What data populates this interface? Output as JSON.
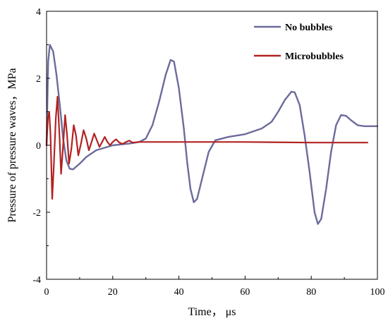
{
  "chart_data": {
    "type": "line",
    "xlabel": "Time，  μs",
    "ylabel": "Pressure of pressure waves，MPa",
    "xlim": [
      0,
      100
    ],
    "ylim": [
      -4,
      4
    ],
    "x_ticks": [
      0,
      20,
      40,
      60,
      80,
      100
    ],
    "y_ticks": [
      -4,
      -2,
      0,
      2,
      4
    ],
    "grid": false,
    "legend": "top-right",
    "series": [
      {
        "name": "No bubbles",
        "color": "#6b6b9c",
        "points": [
          [
            0,
            0.0
          ],
          [
            0.5,
            2.5
          ],
          [
            1,
            3.0
          ],
          [
            2,
            2.8
          ],
          [
            3,
            2.1
          ],
          [
            4,
            1.2
          ],
          [
            5,
            0.2
          ],
          [
            6,
            -0.45
          ],
          [
            7,
            -0.7
          ],
          [
            8,
            -0.72
          ],
          [
            10,
            -0.55
          ],
          [
            12,
            -0.35
          ],
          [
            15,
            -0.15
          ],
          [
            20,
            0.0
          ],
          [
            25,
            0.05
          ],
          [
            28,
            0.1
          ],
          [
            30,
            0.2
          ],
          [
            32,
            0.6
          ],
          [
            34,
            1.3
          ],
          [
            36,
            2.1
          ],
          [
            37.5,
            2.55
          ],
          [
            38.5,
            2.5
          ],
          [
            40,
            1.7
          ],
          [
            41.5,
            0.5
          ],
          [
            42.5,
            -0.5
          ],
          [
            43.5,
            -1.3
          ],
          [
            44.5,
            -1.7
          ],
          [
            45.5,
            -1.6
          ],
          [
            47,
            -1.0
          ],
          [
            49,
            -0.2
          ],
          [
            51,
            0.15
          ],
          [
            55,
            0.25
          ],
          [
            60,
            0.33
          ],
          [
            65,
            0.5
          ],
          [
            68,
            0.7
          ],
          [
            70,
            1.0
          ],
          [
            72,
            1.35
          ],
          [
            74,
            1.6
          ],
          [
            75,
            1.58
          ],
          [
            76.5,
            1.2
          ],
          [
            78,
            0.3
          ],
          [
            79.5,
            -0.8
          ],
          [
            81,
            -2.0
          ],
          [
            82,
            -2.35
          ],
          [
            83,
            -2.2
          ],
          [
            84.5,
            -1.3
          ],
          [
            86,
            -0.2
          ],
          [
            87.5,
            0.6
          ],
          [
            89,
            0.9
          ],
          [
            90.5,
            0.88
          ],
          [
            92,
            0.75
          ],
          [
            94,
            0.6
          ],
          [
            96,
            0.57
          ],
          [
            100,
            0.57
          ]
        ]
      },
      {
        "name": "Microbubbles",
        "color": "#b22222",
        "points": [
          [
            0,
            0.0
          ],
          [
            0.4,
            0.8
          ],
          [
            0.8,
            1.0
          ],
          [
            1.2,
            0.3
          ],
          [
            1.7,
            -1.6
          ],
          [
            2.2,
            -0.6
          ],
          [
            2.8,
            0.8
          ],
          [
            3.3,
            1.45
          ],
          [
            3.9,
            0.3
          ],
          [
            4.4,
            -0.85
          ],
          [
            5,
            0.0
          ],
          [
            5.6,
            0.9
          ],
          [
            6.2,
            0.3
          ],
          [
            6.8,
            -0.55
          ],
          [
            7.5,
            -0.1
          ],
          [
            8.2,
            0.6
          ],
          [
            8.9,
            0.3
          ],
          [
            9.6,
            -0.3
          ],
          [
            10.4,
            0.05
          ],
          [
            11.2,
            0.45
          ],
          [
            12,
            0.2
          ],
          [
            12.8,
            -0.15
          ],
          [
            13.6,
            0.1
          ],
          [
            14.4,
            0.35
          ],
          [
            15.2,
            0.15
          ],
          [
            16,
            -0.05
          ],
          [
            16.8,
            0.1
          ],
          [
            17.6,
            0.25
          ],
          [
            18.4,
            0.1
          ],
          [
            19.2,
            0.0
          ],
          [
            20,
            0.1
          ],
          [
            21,
            0.18
          ],
          [
            22,
            0.08
          ],
          [
            23,
            0.04
          ],
          [
            24,
            0.1
          ],
          [
            25,
            0.14
          ],
          [
            26,
            0.08
          ],
          [
            28,
            0.1
          ],
          [
            30,
            0.1
          ],
          [
            40,
            0.1
          ],
          [
            60,
            0.1
          ],
          [
            80,
            0.08
          ],
          [
            97,
            0.08
          ]
        ]
      }
    ]
  }
}
